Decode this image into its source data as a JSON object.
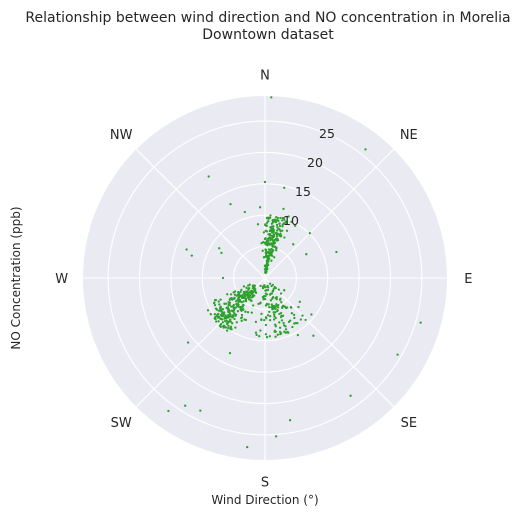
{
  "chart_data": {
    "type": "scatter",
    "projection": "polar",
    "title_lines": [
      "Relationship between wind direction and NO concentration in Morelia",
      "Downtown dataset"
    ],
    "xlabel": "Wind Direction (°)",
    "ylabel": "NO Concentration (ppb)",
    "direction_labels": [
      "N",
      "NE",
      "E",
      "SE",
      "S",
      "SW",
      "W",
      "NW"
    ],
    "direction_angles_deg": [
      0,
      45,
      90,
      135,
      180,
      225,
      270,
      315
    ],
    "radial_ticks": [
      5,
      10,
      15,
      20,
      25
    ],
    "radial_tick_labels": [
      "",
      "10",
      "15",
      "20",
      "25"
    ],
    "r_range": [
      0,
      29
    ],
    "grid": true,
    "background_color": "#eaeaf2",
    "grid_color": "#ffffff",
    "point_color": "#2ca02c",
    "series": [
      {
        "points": [
          [
            2,
            28.8
          ],
          [
            38,
            26.0
          ],
          [
            70,
            12.1
          ],
          [
            106,
            25.8
          ],
          [
            120,
            24.4
          ],
          [
            144,
            23.2
          ],
          [
            170,
            23.0
          ],
          [
            176,
            25.3
          ],
          [
            186,
            27.1
          ],
          [
            206,
            23.5
          ],
          [
            212,
            24.0
          ],
          [
            216,
            26.2
          ],
          [
            331,
            18.5
          ],
          [
            12,
            14.7
          ],
          [
            15,
            11.4
          ],
          [
            21,
            10.5
          ],
          [
            10,
            9.2
          ],
          [
            5,
            10.0
          ],
          [
            0,
            15.3
          ],
          [
            356,
            11.3
          ],
          [
            343,
            11.0
          ],
          [
            335,
            13.0
          ],
          [
            19,
            9.2
          ],
          [
            25,
            8.3
          ],
          [
            30,
            9.6
          ],
          [
            40,
            7.0
          ],
          [
            45,
            10.1
          ],
          [
            60,
            7.6
          ],
          [
            300,
            8.0
          ],
          [
            290,
            13.3
          ],
          [
            303,
            8.7
          ],
          [
            287,
            12.2
          ],
          [
            240,
            8.4
          ],
          [
            270,
            6.7
          ],
          [
            205,
            13.2
          ],
          [
            230,
            16.0
          ],
          [
            150,
            10.5
          ],
          [
            140,
            12.0
          ]
        ],
        "clusters": [
          {
            "theta_mean": 10,
            "theta_spread": 11,
            "r_min": 3.5,
            "r_max": 10.0,
            "count": 170
          },
          {
            "theta_mean": 7,
            "theta_spread": 9,
            "r_min": 0.8,
            "r_max": 3.6,
            "count": 40
          },
          {
            "theta_mean": 227,
            "theta_spread": 15,
            "r_min": 2.0,
            "r_max": 10.5,
            "count": 270
          },
          {
            "theta_mean": 160,
            "theta_spread": 30,
            "r_min": 1.0,
            "r_max": 9.5,
            "count": 150
          }
        ]
      }
    ]
  }
}
